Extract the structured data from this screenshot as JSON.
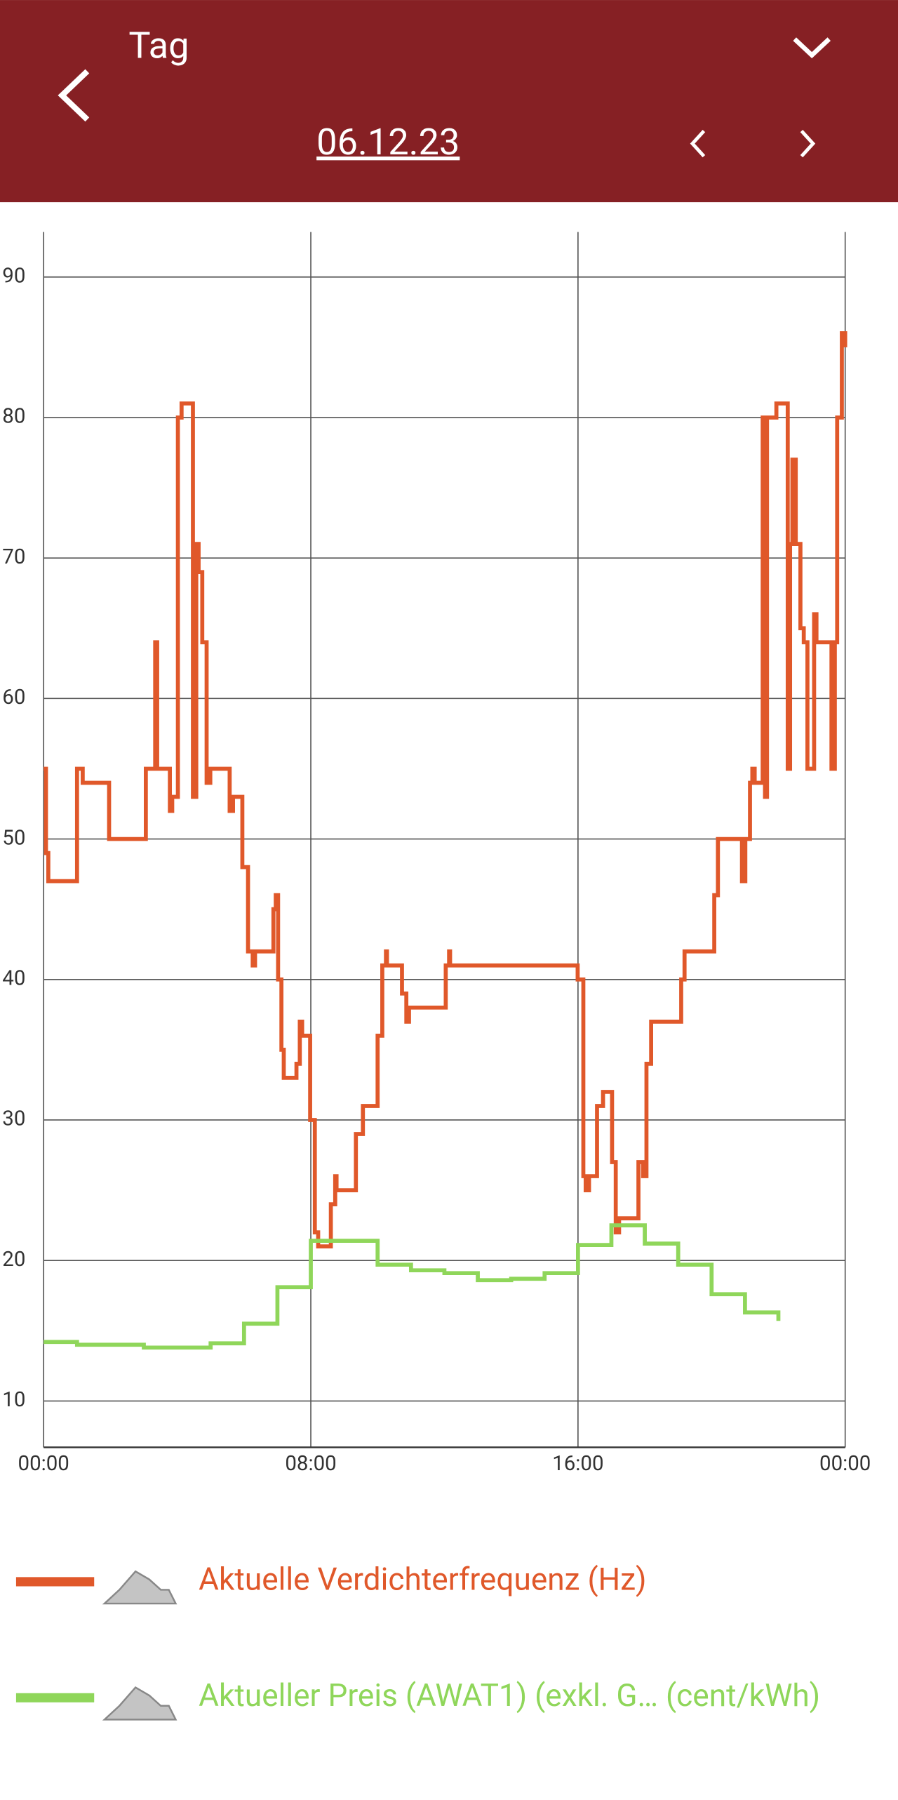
{
  "header": {
    "title": "Tag",
    "date": "06.12.23"
  },
  "chart_data": {
    "type": "line",
    "step": true,
    "xlim": [
      0,
      24
    ],
    "xticks": [
      {
        "value": 0,
        "label": "00:00"
      },
      {
        "value": 8,
        "label": "08:00"
      },
      {
        "value": 16,
        "label": "16:00"
      },
      {
        "value": 24,
        "label": "00:00"
      }
    ],
    "ylim": [
      6.7,
      93.2
    ],
    "yticks": [
      10,
      20,
      30,
      40,
      50,
      60,
      70,
      80,
      90
    ],
    "grid": true,
    "series": [
      {
        "name": "Aktuelle Verdichterfrequenz (Hz)",
        "color": "#e0582a",
        "x": [
          0,
          0.07,
          0.14,
          1.0,
          1.17,
          1.96,
          3.06,
          3.34,
          3.4,
          3.78,
          3.85,
          4.02,
          4.13,
          4.47,
          4.57,
          4.64,
          4.75,
          4.88,
          4.99,
          5.57,
          5.67,
          5.95,
          6.12,
          6.26,
          6.33,
          6.88,
          6.95,
          7.02,
          7.12,
          7.19,
          7.57,
          7.67,
          7.74,
          7.98,
          8.12,
          8.22,
          8.6,
          8.73,
          8.77,
          9.35,
          9.56,
          10.0,
          10.14,
          10.25,
          10.28,
          10.73,
          10.86,
          10.94,
          12.04,
          12.14,
          12.17,
          15.99,
          16.16,
          16.23,
          16.33,
          16.57,
          16.75,
          17.02,
          17.13,
          17.23,
          17.81,
          17.95,
          18.05,
          18.19,
          19.09,
          19.19,
          20.08,
          20.19,
          20.91,
          21.01,
          21.15,
          21.22,
          21.29,
          21.53,
          21.6,
          21.66,
          21.94,
          22.28,
          22.35,
          22.42,
          22.52,
          22.66,
          22.76,
          22.87,
          23.07,
          23.14,
          23.59,
          23.69,
          23.76,
          23.9,
          24.0
        ],
        "values": [
          55,
          49,
          47,
          55,
          54,
          50,
          55,
          64,
          55,
          52,
          53,
          80,
          81,
          53,
          71,
          69,
          64,
          54,
          55,
          52,
          53,
          48,
          42,
          41,
          42,
          45,
          46,
          40,
          35,
          33,
          34,
          37,
          36,
          30,
          22,
          21,
          24,
          26,
          25,
          29,
          31,
          36,
          41,
          42,
          41,
          39,
          37,
          38,
          41,
          42,
          41,
          40,
          26,
          25,
          26,
          31,
          32,
          27,
          22,
          23,
          27,
          26,
          34,
          37,
          40,
          42,
          46,
          50,
          47,
          50,
          54,
          55,
          54,
          80,
          53,
          80,
          81,
          55,
          71,
          77,
          71,
          65,
          64,
          55,
          66,
          64,
          55,
          64,
          80,
          86,
          85
        ]
      },
      {
        "name": "Aktueller Preis (AWAT1) (exkl. G… (cent/kWh)",
        "color": "#8fd65a",
        "x": [
          0,
          1,
          3,
          5,
          6,
          7,
          8,
          10,
          11,
          12,
          13,
          14,
          15,
          16,
          17,
          18,
          19,
          20,
          21,
          22
        ],
        "values": [
          14.2,
          14.0,
          13.8,
          14.1,
          15.5,
          18.1,
          21.4,
          19.7,
          19.3,
          19.1,
          18.6,
          18.7,
          19.1,
          21.1,
          22.5,
          21.2,
          19.7,
          17.6,
          16.3,
          15.7
        ]
      }
    ]
  }
}
